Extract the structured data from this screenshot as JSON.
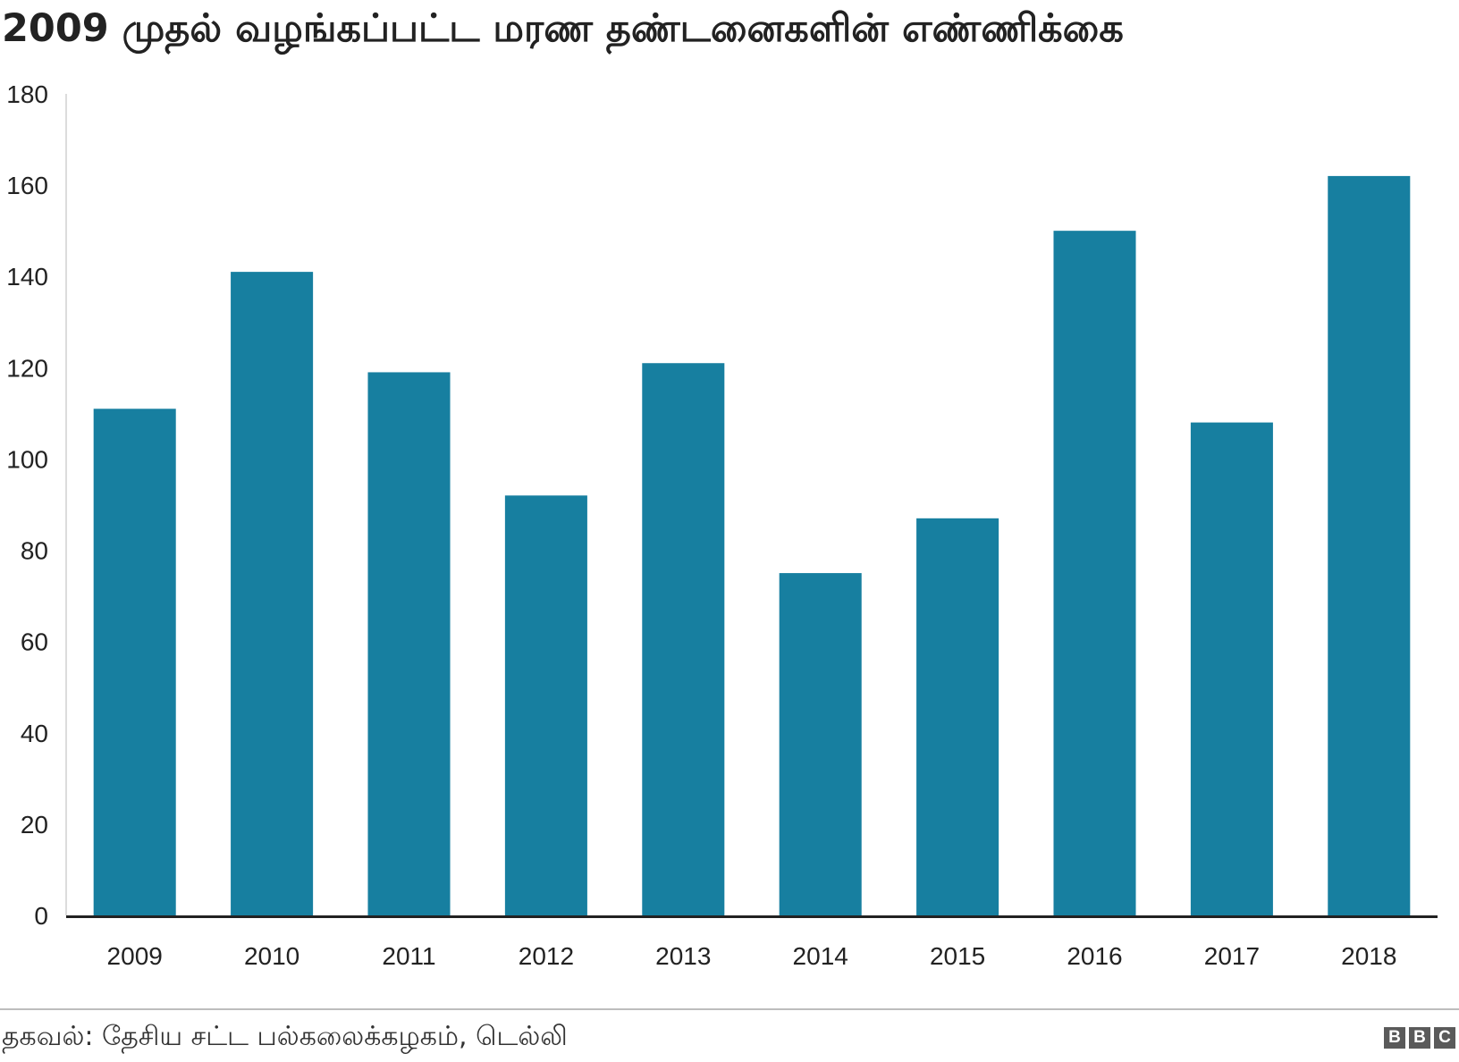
{
  "title": "2009 முதல் வழங்கப்பட்ட மரண தண்டனைகளின் எண்ணிக்கை",
  "source": "தகவல்: தேசிய சட்ட பல்கலைக்கழகம், டெல்லி",
  "brand": [
    "B",
    "B",
    "C"
  ],
  "colors": {
    "bar": "#177fa0",
    "axis": "#222222",
    "rule": "#bdbdbd"
  },
  "chart_data": {
    "type": "bar",
    "title": "2009 முதல் வழங்கப்பட்ட மரண தண்டனைகளின் எண்ணிக்கை",
    "xlabel": "",
    "ylabel": "",
    "categories": [
      "2009",
      "2010",
      "2011",
      "2012",
      "2013",
      "2014",
      "2015",
      "2016",
      "2017",
      "2018"
    ],
    "values": [
      111,
      141,
      119,
      92,
      121,
      75,
      87,
      150,
      108,
      162
    ],
    "ylim": [
      0,
      180
    ],
    "yticks": [
      0,
      20,
      40,
      60,
      80,
      100,
      120,
      140,
      160,
      180
    ],
    "grid": false,
    "legend": "none"
  }
}
